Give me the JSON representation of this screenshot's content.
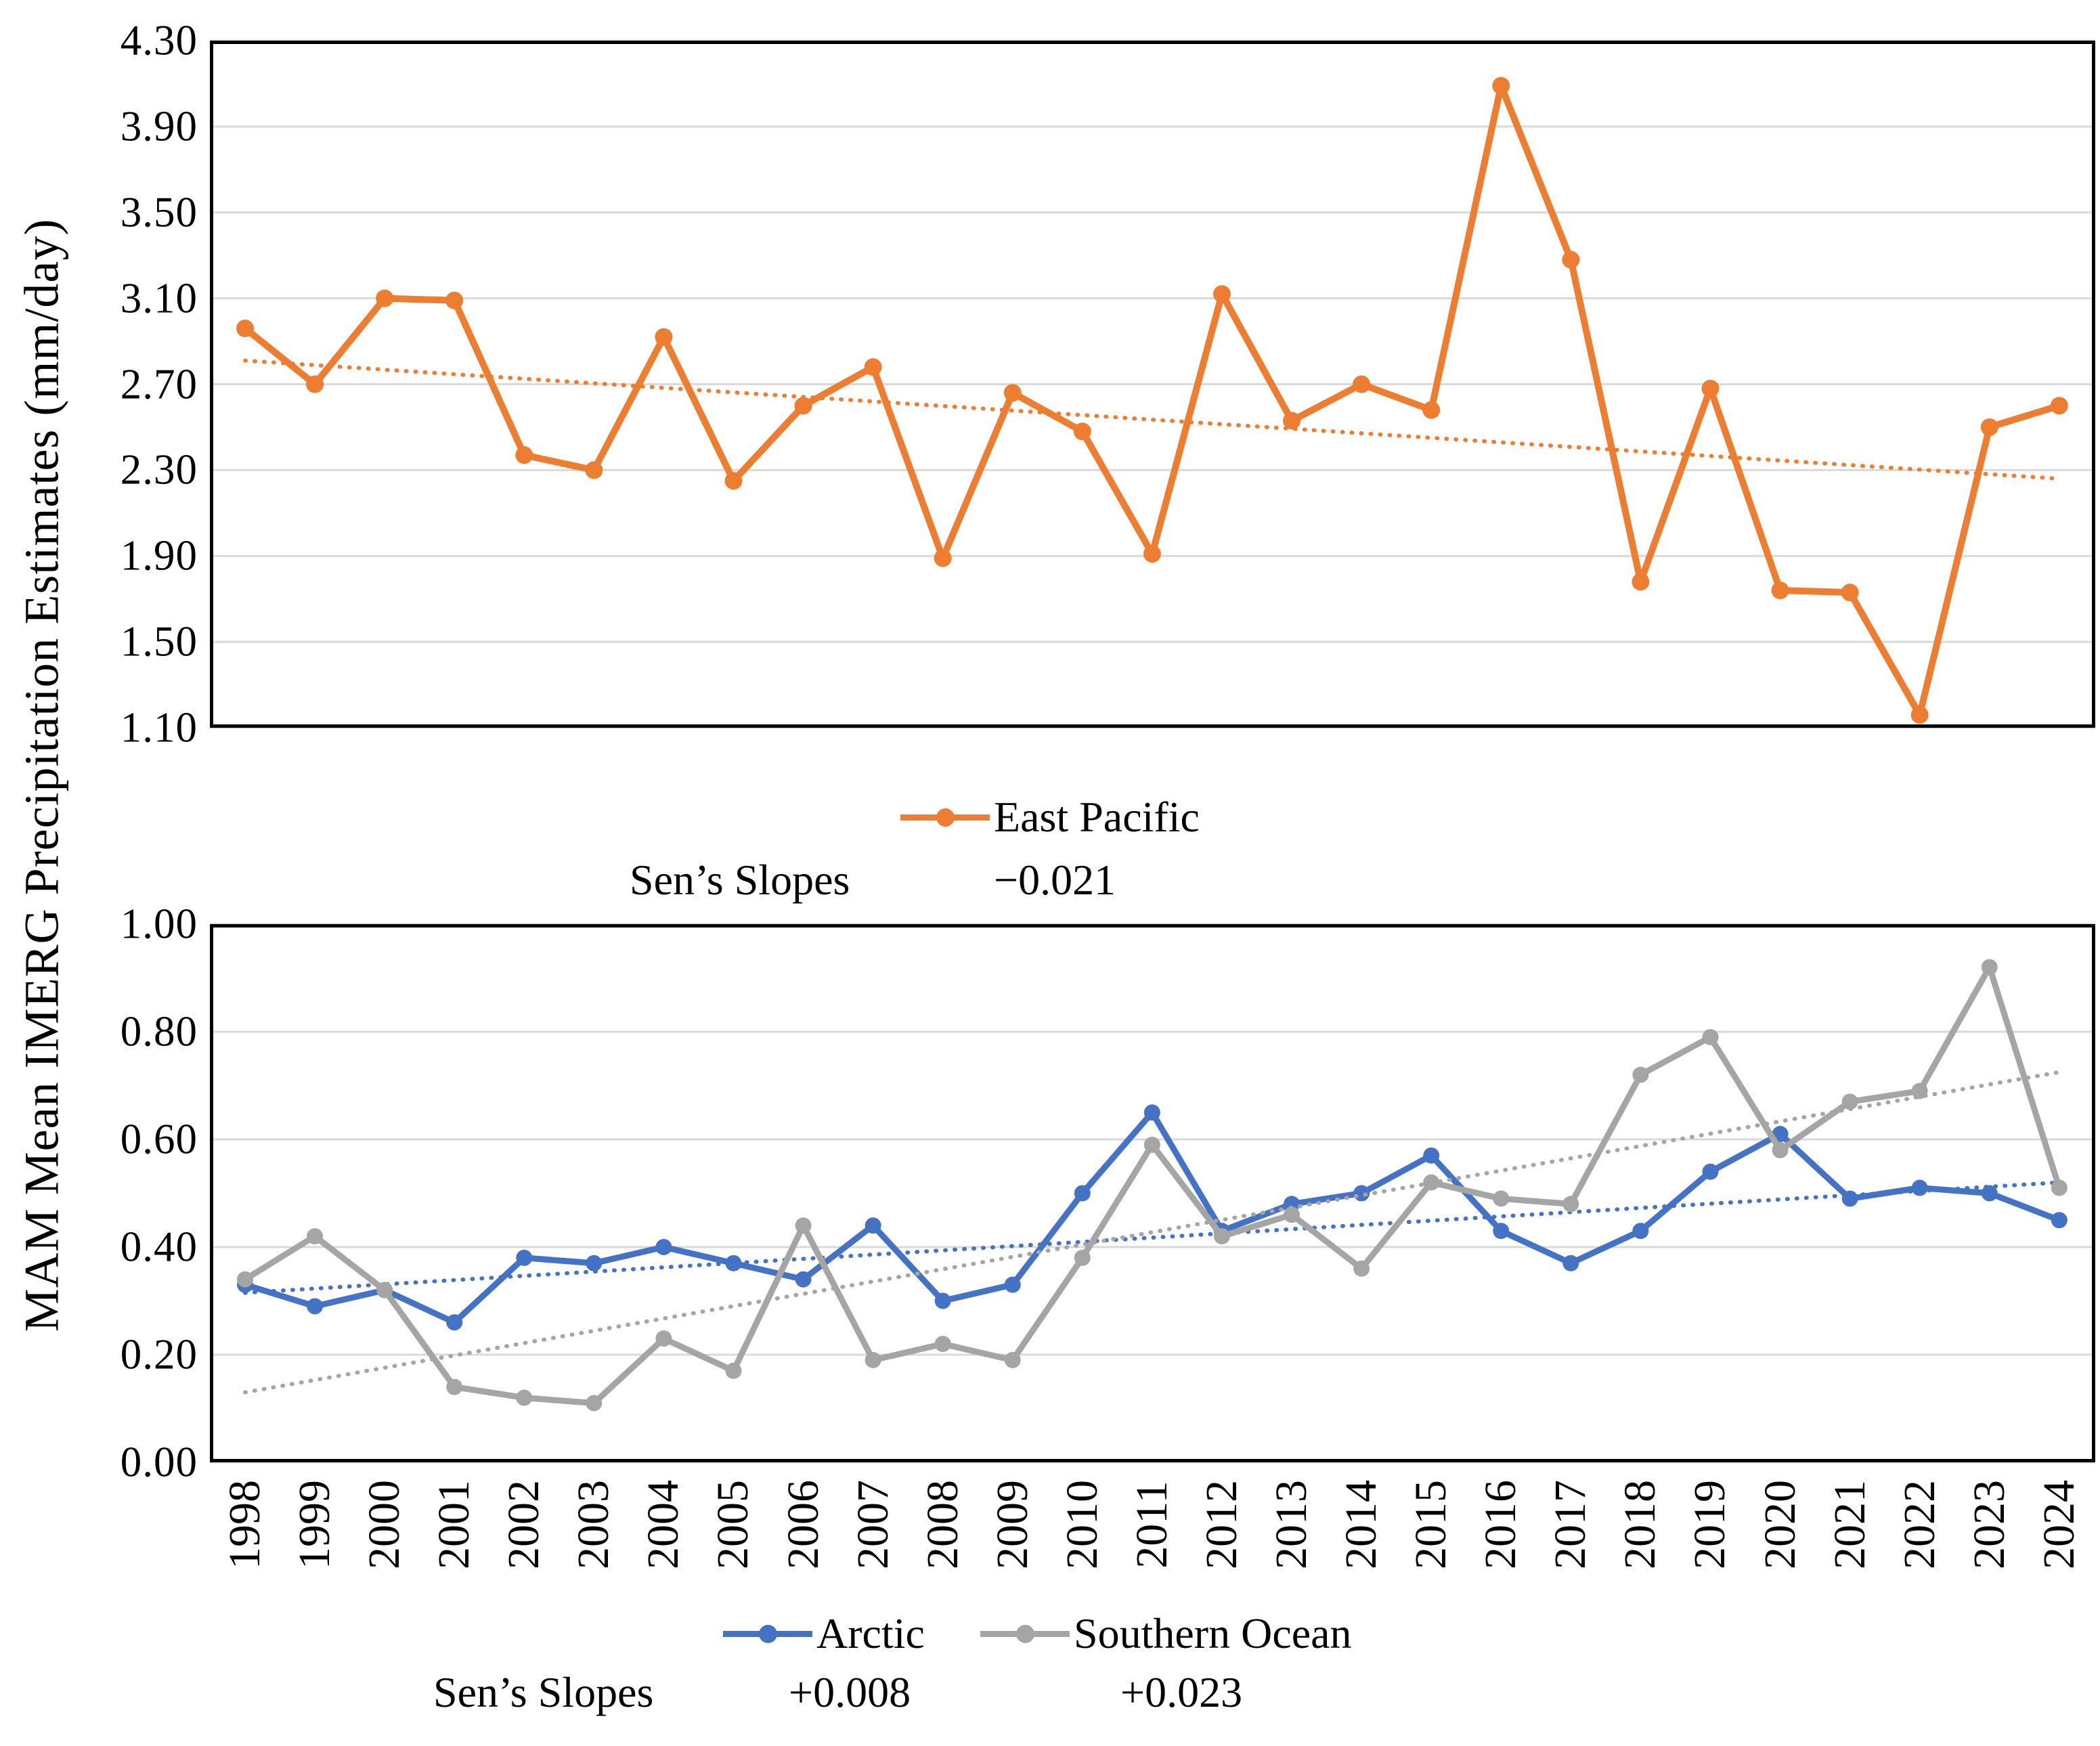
{
  "axis_title": "MAM Mean IMERG  Precipitation Estimates (mm/day)",
  "colors": {
    "east_pacific": "#ED7D31",
    "arctic": "#4472C4",
    "southern_ocean": "#A5A5A5",
    "gridline": "#D9D9D9",
    "plot_border": "#000000",
    "text": "#000000",
    "background": "#FFFFFF"
  },
  "chart_data": [
    {
      "type": "line",
      "position": "top",
      "title": "",
      "xlabel": "",
      "ylabel": "MAM Mean IMERG  Precipitation Estimates (mm/day)",
      "grid": "horizontal",
      "legend_position": "bottom-center",
      "sens_label": "Sen’s Slopes",
      "ylim": [
        1.1,
        4.3
      ],
      "yticks": [
        "4.30",
        "3.90",
        "3.50",
        "3.10",
        "2.70",
        "2.30",
        "1.90",
        "1.50",
        "1.10"
      ],
      "categories": [
        "1998",
        "1999",
        "2000",
        "2001",
        "2002",
        "2003",
        "2004",
        "2005",
        "2006",
        "2007",
        "2008",
        "2009",
        "2010",
        "2011",
        "2012",
        "2013",
        "2014",
        "2015",
        "2016",
        "2017",
        "2018",
        "2019",
        "2020",
        "2021",
        "2022",
        "2023",
        "2024"
      ],
      "x_labels_visible": false,
      "series": [
        {
          "name": "East Pacific",
          "color": "#ED7D31",
          "values": [
            2.96,
            2.7,
            3.1,
            3.09,
            2.37,
            2.3,
            2.92,
            2.25,
            2.6,
            2.78,
            1.89,
            2.66,
            2.48,
            1.91,
            3.12,
            2.53,
            2.7,
            2.58,
            4.09,
            3.28,
            1.78,
            2.68,
            1.74,
            1.73,
            1.16,
            2.5,
            2.6
          ],
          "trend": {
            "style": "dotted",
            "slope": "−0.021",
            "start": 2.81,
            "end": 2.26
          }
        }
      ]
    },
    {
      "type": "line",
      "position": "bottom",
      "title": "",
      "xlabel": "",
      "ylabel": "MAM Mean IMERG  Precipitation Estimates (mm/day)",
      "grid": "horizontal",
      "legend_position": "bottom-center",
      "sens_label": "Sen’s Slopes",
      "ylim": [
        0.0,
        1.0
      ],
      "yticks": [
        "1.00",
        "0.80",
        "0.60",
        "0.40",
        "0.20",
        "0.00"
      ],
      "categories": [
        "1998",
        "1999",
        "2000",
        "2001",
        "2002",
        "2003",
        "2004",
        "2005",
        "2006",
        "2007",
        "2008",
        "2009",
        "2010",
        "2011",
        "2012",
        "2013",
        "2014",
        "2015",
        "2016",
        "2017",
        "2018",
        "2019",
        "2020",
        "2021",
        "2022",
        "2023",
        "2024"
      ],
      "x_labels_visible": true,
      "series": [
        {
          "name": "Arctic",
          "color": "#4472C4",
          "values": [
            0.33,
            0.29,
            0.32,
            0.26,
            0.38,
            0.37,
            0.4,
            0.37,
            0.34,
            0.44,
            0.3,
            0.33,
            0.5,
            0.65,
            0.43,
            0.48,
            0.5,
            0.57,
            0.43,
            0.37,
            0.43,
            0.54,
            0.61,
            0.49,
            0.51,
            0.5,
            0.45
          ],
          "trend": {
            "style": "dotted",
            "slope": "+0.008",
            "start": 0.315,
            "end": 0.52
          }
        },
        {
          "name": "Southern Ocean",
          "color": "#A5A5A5",
          "values": [
            0.34,
            0.42,
            0.32,
            0.14,
            0.12,
            0.11,
            0.23,
            0.17,
            0.44,
            0.19,
            0.22,
            0.19,
            0.38,
            0.59,
            0.42,
            0.46,
            0.36,
            0.52,
            0.49,
            0.48,
            0.72,
            0.79,
            0.58,
            0.67,
            0.69,
            0.92,
            0.51
          ],
          "trend": {
            "style": "dotted",
            "slope": "+0.023",
            "start": 0.13,
            "end": 0.725
          }
        }
      ]
    }
  ]
}
